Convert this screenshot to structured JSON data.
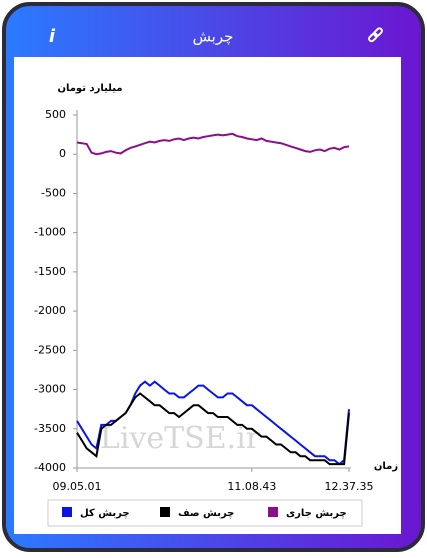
{
  "header": {
    "title": "چربش",
    "info": "i"
  },
  "chart_data": {
    "type": "line",
    "y_label": "میلیارد تومان",
    "x_label": "زمان",
    "watermark": "LiveTSE.ir",
    "categories": [
      "09.05.01",
      null,
      null,
      null,
      null,
      null,
      null,
      null,
      null,
      null,
      null,
      null,
      null,
      null,
      null,
      null,
      null,
      null,
      null,
      null,
      null,
      null,
      null,
      null,
      null,
      null,
      null,
      null,
      null,
      null,
      null,
      null,
      null,
      null,
      null,
      null,
      "11.08.43",
      null,
      null,
      null,
      null,
      null,
      null,
      null,
      null,
      null,
      null,
      null,
      null,
      null,
      null,
      null,
      null,
      null,
      null,
      null,
      "12.37.35"
    ],
    "ylim": [
      -4000,
      500
    ],
    "yticks": [
      500,
      0,
      -500,
      -1000,
      -1500,
      -2000,
      -2500,
      -3000,
      -3500,
      -4000
    ],
    "grid": false,
    "legend": "bottom",
    "series": [
      {
        "name": "چربش کل",
        "color": "#0a14e6",
        "values": [
          -3400,
          -3500,
          -3600,
          -3700,
          -3750,
          -3450,
          -3450,
          -3400,
          -3400,
          -3350,
          -3300,
          -3200,
          -3050,
          -2950,
          -2900,
          -2950,
          -2900,
          -2950,
          -3000,
          -3050,
          -3050,
          -3100,
          -3100,
          -3050,
          -3000,
          -2950,
          -2950,
          -3000,
          -3050,
          -3100,
          -3100,
          -3050,
          -3050,
          -3100,
          -3150,
          -3200,
          -3200,
          -3250,
          -3300,
          -3350,
          -3400,
          -3450,
          -3500,
          -3550,
          -3600,
          -3650,
          -3700,
          -3750,
          -3800,
          -3850,
          -3850,
          -3850,
          -3900,
          -3900,
          -3950,
          -3900,
          -3250
        ]
      },
      {
        "name": "چربش صف",
        "color": "#000000",
        "values": [
          -3550,
          -3650,
          -3750,
          -3800,
          -3850,
          -3500,
          -3450,
          -3450,
          -3400,
          -3350,
          -3300,
          -3200,
          -3100,
          -3050,
          -3100,
          -3150,
          -3200,
          -3200,
          -3250,
          -3300,
          -3300,
          -3350,
          -3300,
          -3250,
          -3200,
          -3200,
          -3250,
          -3300,
          -3300,
          -3350,
          -3350,
          -3350,
          -3400,
          -3450,
          -3450,
          -3500,
          -3500,
          -3550,
          -3600,
          -3600,
          -3650,
          -3700,
          -3700,
          -3750,
          -3800,
          -3800,
          -3850,
          -3850,
          -3900,
          -3900,
          -3900,
          -3900,
          -3950,
          -3950,
          -3950,
          -3950,
          -3300
        ]
      },
      {
        "name": "چربش جاری",
        "color": "#8b0f8b",
        "values": [
          150,
          140,
          130,
          20,
          0,
          10,
          30,
          40,
          20,
          10,
          50,
          80,
          100,
          120,
          140,
          160,
          150,
          170,
          180,
          170,
          190,
          200,
          180,
          200,
          210,
          200,
          220,
          230,
          240,
          250,
          240,
          250,
          260,
          230,
          220,
          200,
          190,
          180,
          200,
          170,
          160,
          150,
          140,
          120,
          100,
          80,
          60,
          40,
          30,
          50,
          60,
          40,
          70,
          80,
          60,
          90,
          100
        ]
      }
    ]
  }
}
